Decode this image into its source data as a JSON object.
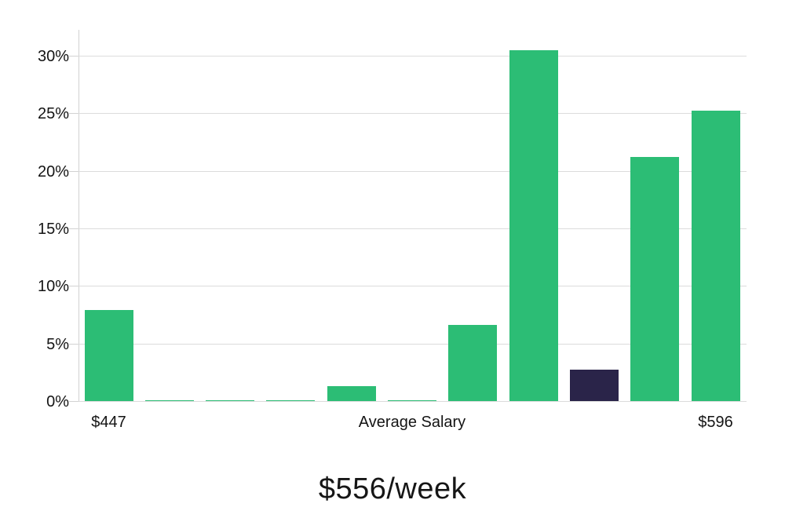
{
  "page": {
    "background": "#ffffff"
  },
  "chart_data": {
    "type": "bar",
    "title": "$556/week",
    "categories": [
      "$447",
      "",
      "",
      "",
      "",
      "Average Salary",
      "",
      "",
      "",
      "",
      "$596"
    ],
    "values": [
      7.9,
      0.1,
      0.1,
      0.1,
      1.3,
      0.1,
      6.6,
      30.5,
      2.7,
      21.2,
      25.2
    ],
    "series_name": "share-of-salaries",
    "unit": "%",
    "bar_color": "#2cbd75",
    "highlight_index": 8,
    "highlight_color": "#2a2449",
    "y_ticks": [
      "0%",
      "5%",
      "10%",
      "15%",
      "20%",
      "25%",
      "30%"
    ],
    "y_tick_values": [
      0,
      5,
      10,
      15,
      20,
      25,
      30
    ],
    "ylim": [
      0,
      32
    ],
    "xlabel": "",
    "ylabel": "",
    "grid": true,
    "legend_position": "none"
  }
}
